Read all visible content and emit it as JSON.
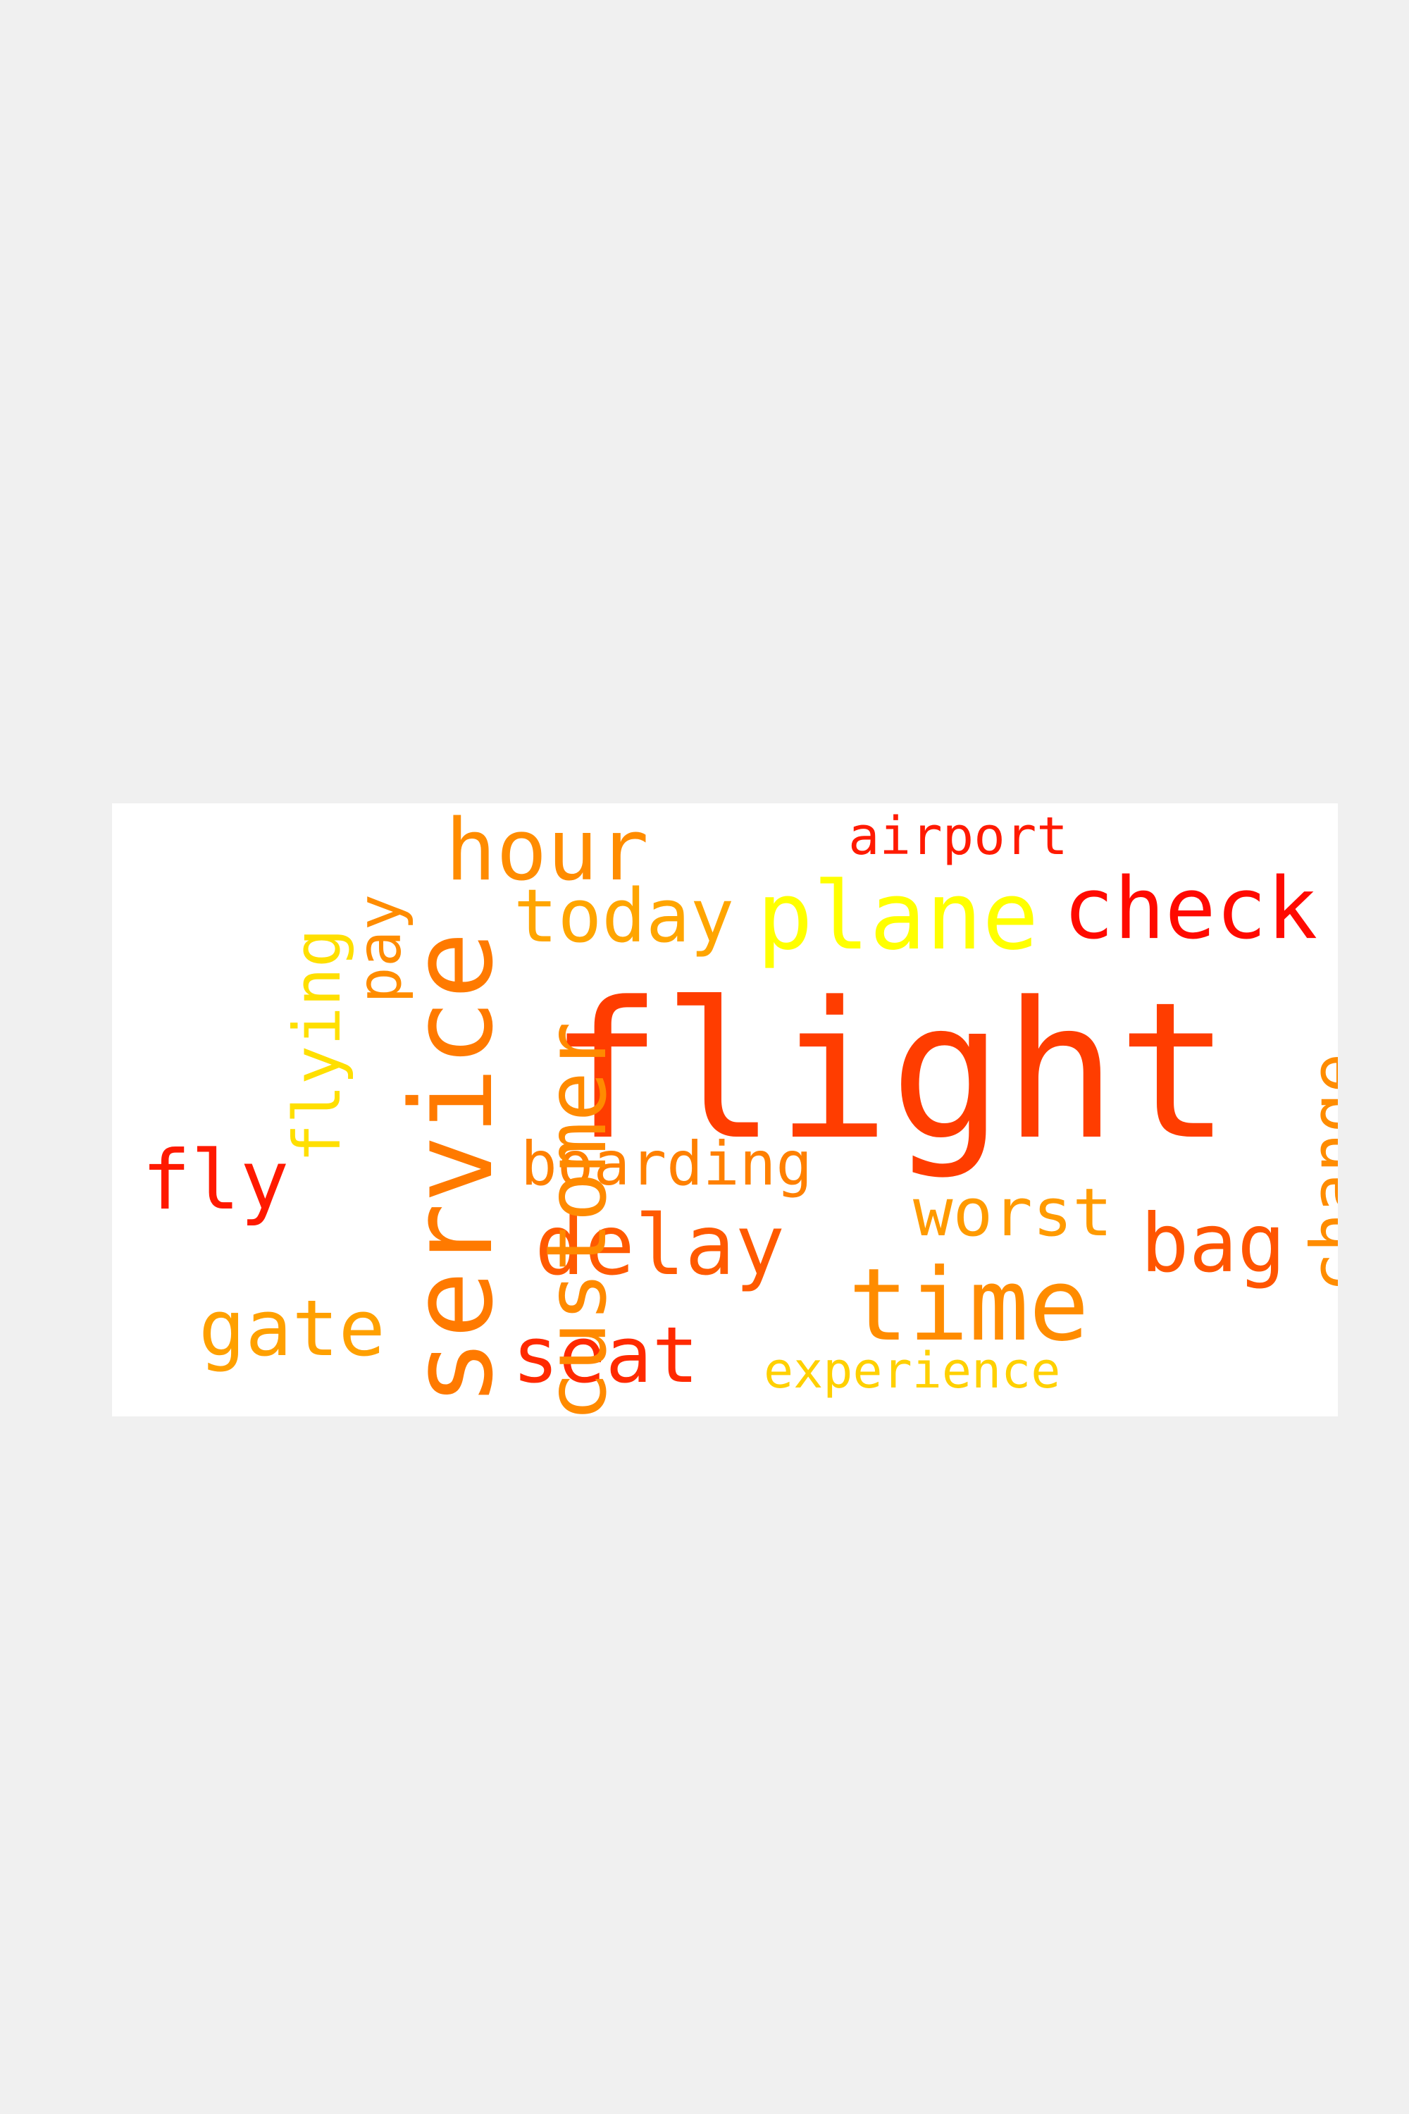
{
  "wordcloud": {
    "background": "#ffffff",
    "page_background": "#f0f0f0",
    "words": {
      "flight": {
        "text": "flight",
        "color": "#ff3d00"
      },
      "hour": {
        "text": "hour",
        "color": "#ff8c00"
      },
      "today": {
        "text": "today",
        "color": "#ffa500"
      },
      "plane": {
        "text": "plane",
        "color": "#ffff00"
      },
      "check": {
        "text": "check",
        "color": "#ff0a00"
      },
      "airport": {
        "text": "airport",
        "color": "#ff1a00"
      },
      "fly": {
        "text": "fly",
        "color": "#ff1a00"
      },
      "boarding": {
        "text": "boarding",
        "color": "#ff8000"
      },
      "worst": {
        "text": "worst",
        "color": "#ff9a00"
      },
      "delay": {
        "text": "delay",
        "color": "#ff5a00"
      },
      "bag": {
        "text": "bag",
        "color": "#ff5500"
      },
      "time": {
        "text": "time",
        "color": "#ff8c00"
      },
      "gate": {
        "text": "gate",
        "color": "#ffa000"
      },
      "seat": {
        "text": "seat",
        "color": "#ff2a00"
      },
      "experience": {
        "text": "experience",
        "color": "#ffd000"
      },
      "service": {
        "text": "service",
        "color": "#ff7a00"
      },
      "customer": {
        "text": "customer",
        "color": "#ff8a00"
      },
      "flying": {
        "text": "flying",
        "color": "#ffdf00"
      },
      "pay": {
        "text": "pay",
        "color": "#ff8c00"
      },
      "change": {
        "text": "change",
        "color": "#ff8c00"
      }
    }
  }
}
